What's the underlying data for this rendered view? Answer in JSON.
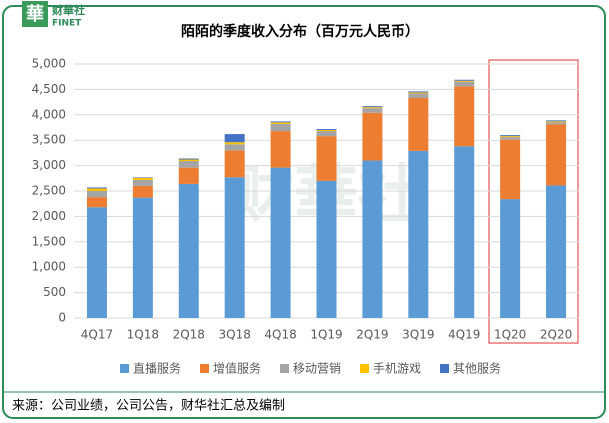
{
  "logo": {
    "mark": "華",
    "name": "财華社",
    "sub": "FINET"
  },
  "chart_data": {
    "type": "stacked_bar",
    "title": "陌陌的季度收入分布（百万元人民币）",
    "categories": [
      "4Q17",
      "1Q18",
      "2Q18",
      "3Q18",
      "4Q18",
      "1Q19",
      "2Q19",
      "3Q19",
      "4Q19",
      "1Q20",
      "2Q20"
    ],
    "series": [
      {
        "name": "直播服务",
        "color": "#5b9bd5",
        "values": [
          2180,
          2370,
          2640,
          2770,
          2960,
          2700,
          3100,
          3290,
          3380,
          2340,
          2610
        ]
      },
      {
        "name": "增值服务",
        "color": "#ed7d31",
        "values": [
          200,
          230,
          320,
          530,
          720,
          880,
          940,
          1040,
          1180,
          1170,
          1200
        ]
      },
      {
        "name": "移动营销",
        "color": "#a5a5a5",
        "values": [
          120,
          120,
          130,
          120,
          140,
          100,
          90,
          90,
          90,
          50,
          40
        ]
      },
      {
        "name": "手机游戏",
        "color": "#ffc000",
        "values": [
          50,
          40,
          30,
          40,
          30,
          20,
          20,
          20,
          20,
          20,
          20
        ]
      },
      {
        "name": "其他服务",
        "color": "#4472c4",
        "values": [
          20,
          10,
          20,
          160,
          20,
          20,
          20,
          20,
          20,
          20,
          20
        ]
      }
    ],
    "ylim": [
      0,
      5000
    ],
    "yticks": [
      0,
      500,
      {
        "value": 1000,
        "label": "1,000"
      },
      {
        "value": 1500,
        "label": "1,500"
      },
      {
        "value": 2000,
        "label": "2,000"
      },
      {
        "value": 2500,
        "label": "2,500"
      },
      {
        "value": 3000,
        "label": "3,000"
      },
      {
        "value": 3500,
        "label": "3,500"
      },
      {
        "value": 4000,
        "label": "4,000"
      },
      {
        "value": 4500,
        "label": "4,500"
      },
      {
        "value": 5000,
        "label": "5,000"
      }
    ],
    "grid": true,
    "source": "来源：公司业绩，公司公告，财华社汇总及编制"
  }
}
